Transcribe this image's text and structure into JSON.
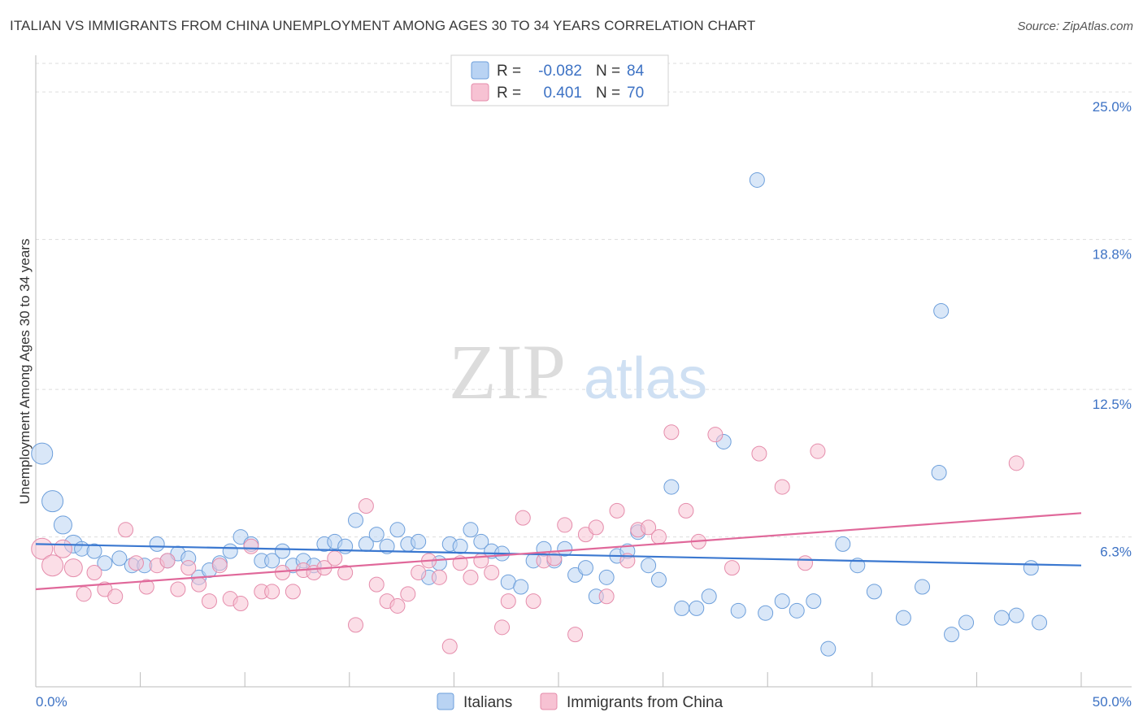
{
  "title": "ITALIAN VS IMMIGRANTS FROM CHINA UNEMPLOYMENT AMONG AGES 30 TO 34 YEARS CORRELATION CHART",
  "source": "Source: ZipAtlas.com",
  "watermark": {
    "zip": "ZIP",
    "atlas": "atlas"
  },
  "colors": {
    "italians_fill": "#b9d3f3",
    "italians_stroke": "#6d9fdb",
    "italians_line": "#3b78d0",
    "china_fill": "#f7c2d3",
    "china_stroke": "#e58cab",
    "china_line": "#e0689a",
    "tick_color": "#3d72c4",
    "grid": "#dddddd"
  },
  "legend": {
    "rows": [
      {
        "r_label": "R =",
        "r_value": "-0.082",
        "n_label": "N =",
        "n_value": "84"
      },
      {
        "r_label": "R =",
        "r_value": "0.401",
        "n_label": "N =",
        "n_value": "70"
      }
    ]
  },
  "chart_data": {
    "type": "scatter",
    "title": "ITALIAN VS IMMIGRANTS FROM CHINA UNEMPLOYMENT AMONG AGES 30 TO 34 YEARS CORRELATION CHART",
    "xlabel": "",
    "ylabel": "Unemployment Among Ages 30 to 34 years",
    "xlim": [
      0,
      50
    ],
    "ylim": [
      0,
      26.2
    ],
    "x_tick_labels": [
      "0.0%",
      "50.0%"
    ],
    "y_ticks": [
      6.3,
      12.5,
      18.8,
      25.0
    ],
    "y_tick_labels": [
      "6.3%",
      "12.5%",
      "18.8%",
      "25.0%"
    ],
    "grid": true,
    "legend_position": "top-center",
    "series": [
      {
        "name": "Italians",
        "R": -0.082,
        "N": 84,
        "trend": {
          "x": [
            0,
            50
          ],
          "y": [
            6.0,
            5.1
          ]
        },
        "points": [
          [
            0.3,
            9.8
          ],
          [
            0.8,
            7.8
          ],
          [
            1.3,
            6.8
          ],
          [
            1.8,
            6.0
          ],
          [
            2.2,
            5.8
          ],
          [
            2.8,
            5.7
          ],
          [
            3.3,
            5.2
          ],
          [
            4.0,
            5.4
          ],
          [
            4.6,
            5.1
          ],
          [
            5.2,
            5.1
          ],
          [
            5.8,
            6.0
          ],
          [
            6.3,
            5.3
          ],
          [
            6.8,
            5.6
          ],
          [
            7.3,
            5.4
          ],
          [
            7.8,
            4.6
          ],
          [
            8.3,
            4.9
          ],
          [
            8.8,
            5.2
          ],
          [
            9.3,
            5.7
          ],
          [
            9.8,
            6.3
          ],
          [
            10.3,
            6.0
          ],
          [
            10.8,
            5.3
          ],
          [
            11.3,
            5.3
          ],
          [
            11.8,
            5.7
          ],
          [
            12.3,
            5.1
          ],
          [
            12.8,
            5.3
          ],
          [
            13.3,
            5.1
          ],
          [
            13.8,
            6.0
          ],
          [
            14.3,
            6.1
          ],
          [
            14.8,
            5.9
          ],
          [
            15.3,
            7.0
          ],
          [
            15.8,
            6.0
          ],
          [
            16.3,
            6.4
          ],
          [
            16.8,
            5.9
          ],
          [
            17.3,
            6.6
          ],
          [
            17.8,
            6.0
          ],
          [
            18.3,
            6.1
          ],
          [
            18.8,
            4.6
          ],
          [
            19.3,
            5.2
          ],
          [
            19.8,
            6.0
          ],
          [
            20.3,
            5.9
          ],
          [
            20.8,
            6.6
          ],
          [
            21.3,
            6.1
          ],
          [
            21.8,
            5.7
          ],
          [
            22.3,
            5.6
          ],
          [
            22.6,
            4.4
          ],
          [
            23.2,
            4.2
          ],
          [
            23.8,
            5.3
          ],
          [
            24.3,
            5.8
          ],
          [
            24.8,
            5.3
          ],
          [
            25.3,
            5.8
          ],
          [
            25.8,
            4.7
          ],
          [
            26.3,
            5.0
          ],
          [
            26.8,
            3.8
          ],
          [
            27.3,
            4.6
          ],
          [
            27.8,
            5.5
          ],
          [
            28.3,
            5.7
          ],
          [
            28.8,
            6.5
          ],
          [
            29.3,
            5.1
          ],
          [
            29.8,
            4.5
          ],
          [
            30.4,
            8.4
          ],
          [
            30.9,
            3.3
          ],
          [
            31.6,
            3.3
          ],
          [
            32.2,
            3.8
          ],
          [
            32.9,
            10.3
          ],
          [
            33.6,
            3.2
          ],
          [
            34.5,
            21.3
          ],
          [
            34.9,
            3.1
          ],
          [
            35.7,
            3.6
          ],
          [
            36.4,
            3.2
          ],
          [
            37.2,
            3.6
          ],
          [
            37.9,
            1.6
          ],
          [
            38.6,
            6.0
          ],
          [
            39.3,
            5.1
          ],
          [
            40.1,
            4.0
          ],
          [
            41.5,
            2.9
          ],
          [
            42.4,
            4.2
          ],
          [
            43.2,
            9.0
          ],
          [
            43.8,
            2.2
          ],
          [
            44.5,
            2.7
          ],
          [
            46.2,
            2.9
          ],
          [
            48.0,
            2.7
          ],
          [
            43.3,
            15.8
          ],
          [
            46.9,
            3.0
          ],
          [
            47.6,
            5.0
          ]
        ]
      },
      {
        "name": "Immigrants from China",
        "R": 0.401,
        "N": 70,
        "trend": {
          "x": [
            0,
            50
          ],
          "y": [
            4.1,
            7.3
          ]
        },
        "points": [
          [
            0.3,
            5.8
          ],
          [
            0.8,
            5.1
          ],
          [
            1.3,
            5.8
          ],
          [
            1.8,
            5.0
          ],
          [
            2.3,
            3.9
          ],
          [
            2.8,
            4.8
          ],
          [
            3.3,
            4.1
          ],
          [
            3.8,
            3.8
          ],
          [
            4.3,
            6.6
          ],
          [
            4.8,
            5.2
          ],
          [
            5.3,
            4.2
          ],
          [
            5.8,
            5.1
          ],
          [
            6.3,
            5.3
          ],
          [
            6.8,
            4.1
          ],
          [
            7.3,
            5.0
          ],
          [
            7.8,
            4.3
          ],
          [
            8.3,
            3.6
          ],
          [
            8.8,
            5.1
          ],
          [
            9.3,
            3.7
          ],
          [
            9.8,
            3.5
          ],
          [
            10.3,
            5.9
          ],
          [
            10.8,
            4.0
          ],
          [
            11.3,
            4.0
          ],
          [
            11.8,
            4.8
          ],
          [
            12.3,
            4.0
          ],
          [
            12.8,
            4.9
          ],
          [
            13.3,
            4.8
          ],
          [
            13.8,
            5.0
          ],
          [
            14.3,
            5.4
          ],
          [
            14.8,
            4.8
          ],
          [
            15.3,
            2.6
          ],
          [
            15.8,
            7.6
          ],
          [
            16.3,
            4.3
          ],
          [
            16.8,
            3.6
          ],
          [
            17.3,
            3.4
          ],
          [
            17.8,
            3.9
          ],
          [
            18.3,
            4.8
          ],
          [
            18.8,
            5.3
          ],
          [
            19.3,
            4.6
          ],
          [
            19.8,
            1.7
          ],
          [
            20.3,
            5.2
          ],
          [
            20.8,
            4.6
          ],
          [
            21.3,
            5.3
          ],
          [
            21.8,
            4.8
          ],
          [
            22.3,
            2.5
          ],
          [
            22.6,
            3.6
          ],
          [
            23.3,
            7.1
          ],
          [
            23.8,
            3.6
          ],
          [
            24.3,
            5.3
          ],
          [
            24.8,
            5.4
          ],
          [
            25.3,
            6.8
          ],
          [
            25.8,
            2.2
          ],
          [
            26.3,
            6.4
          ],
          [
            26.8,
            6.7
          ],
          [
            27.3,
            3.8
          ],
          [
            27.8,
            7.4
          ],
          [
            28.3,
            5.3
          ],
          [
            28.8,
            6.6
          ],
          [
            29.3,
            6.7
          ],
          [
            29.8,
            6.3
          ],
          [
            30.4,
            10.7
          ],
          [
            31.1,
            7.4
          ],
          [
            31.7,
            6.1
          ],
          [
            32.5,
            10.6
          ],
          [
            33.3,
            5.0
          ],
          [
            34.6,
            9.8
          ],
          [
            35.7,
            8.4
          ],
          [
            36.8,
            5.2
          ],
          [
            37.4,
            9.9
          ],
          [
            46.9,
            9.4
          ]
        ]
      }
    ]
  },
  "bottom_legend": [
    {
      "label": "Italians"
    },
    {
      "label": "Immigrants from China"
    }
  ]
}
